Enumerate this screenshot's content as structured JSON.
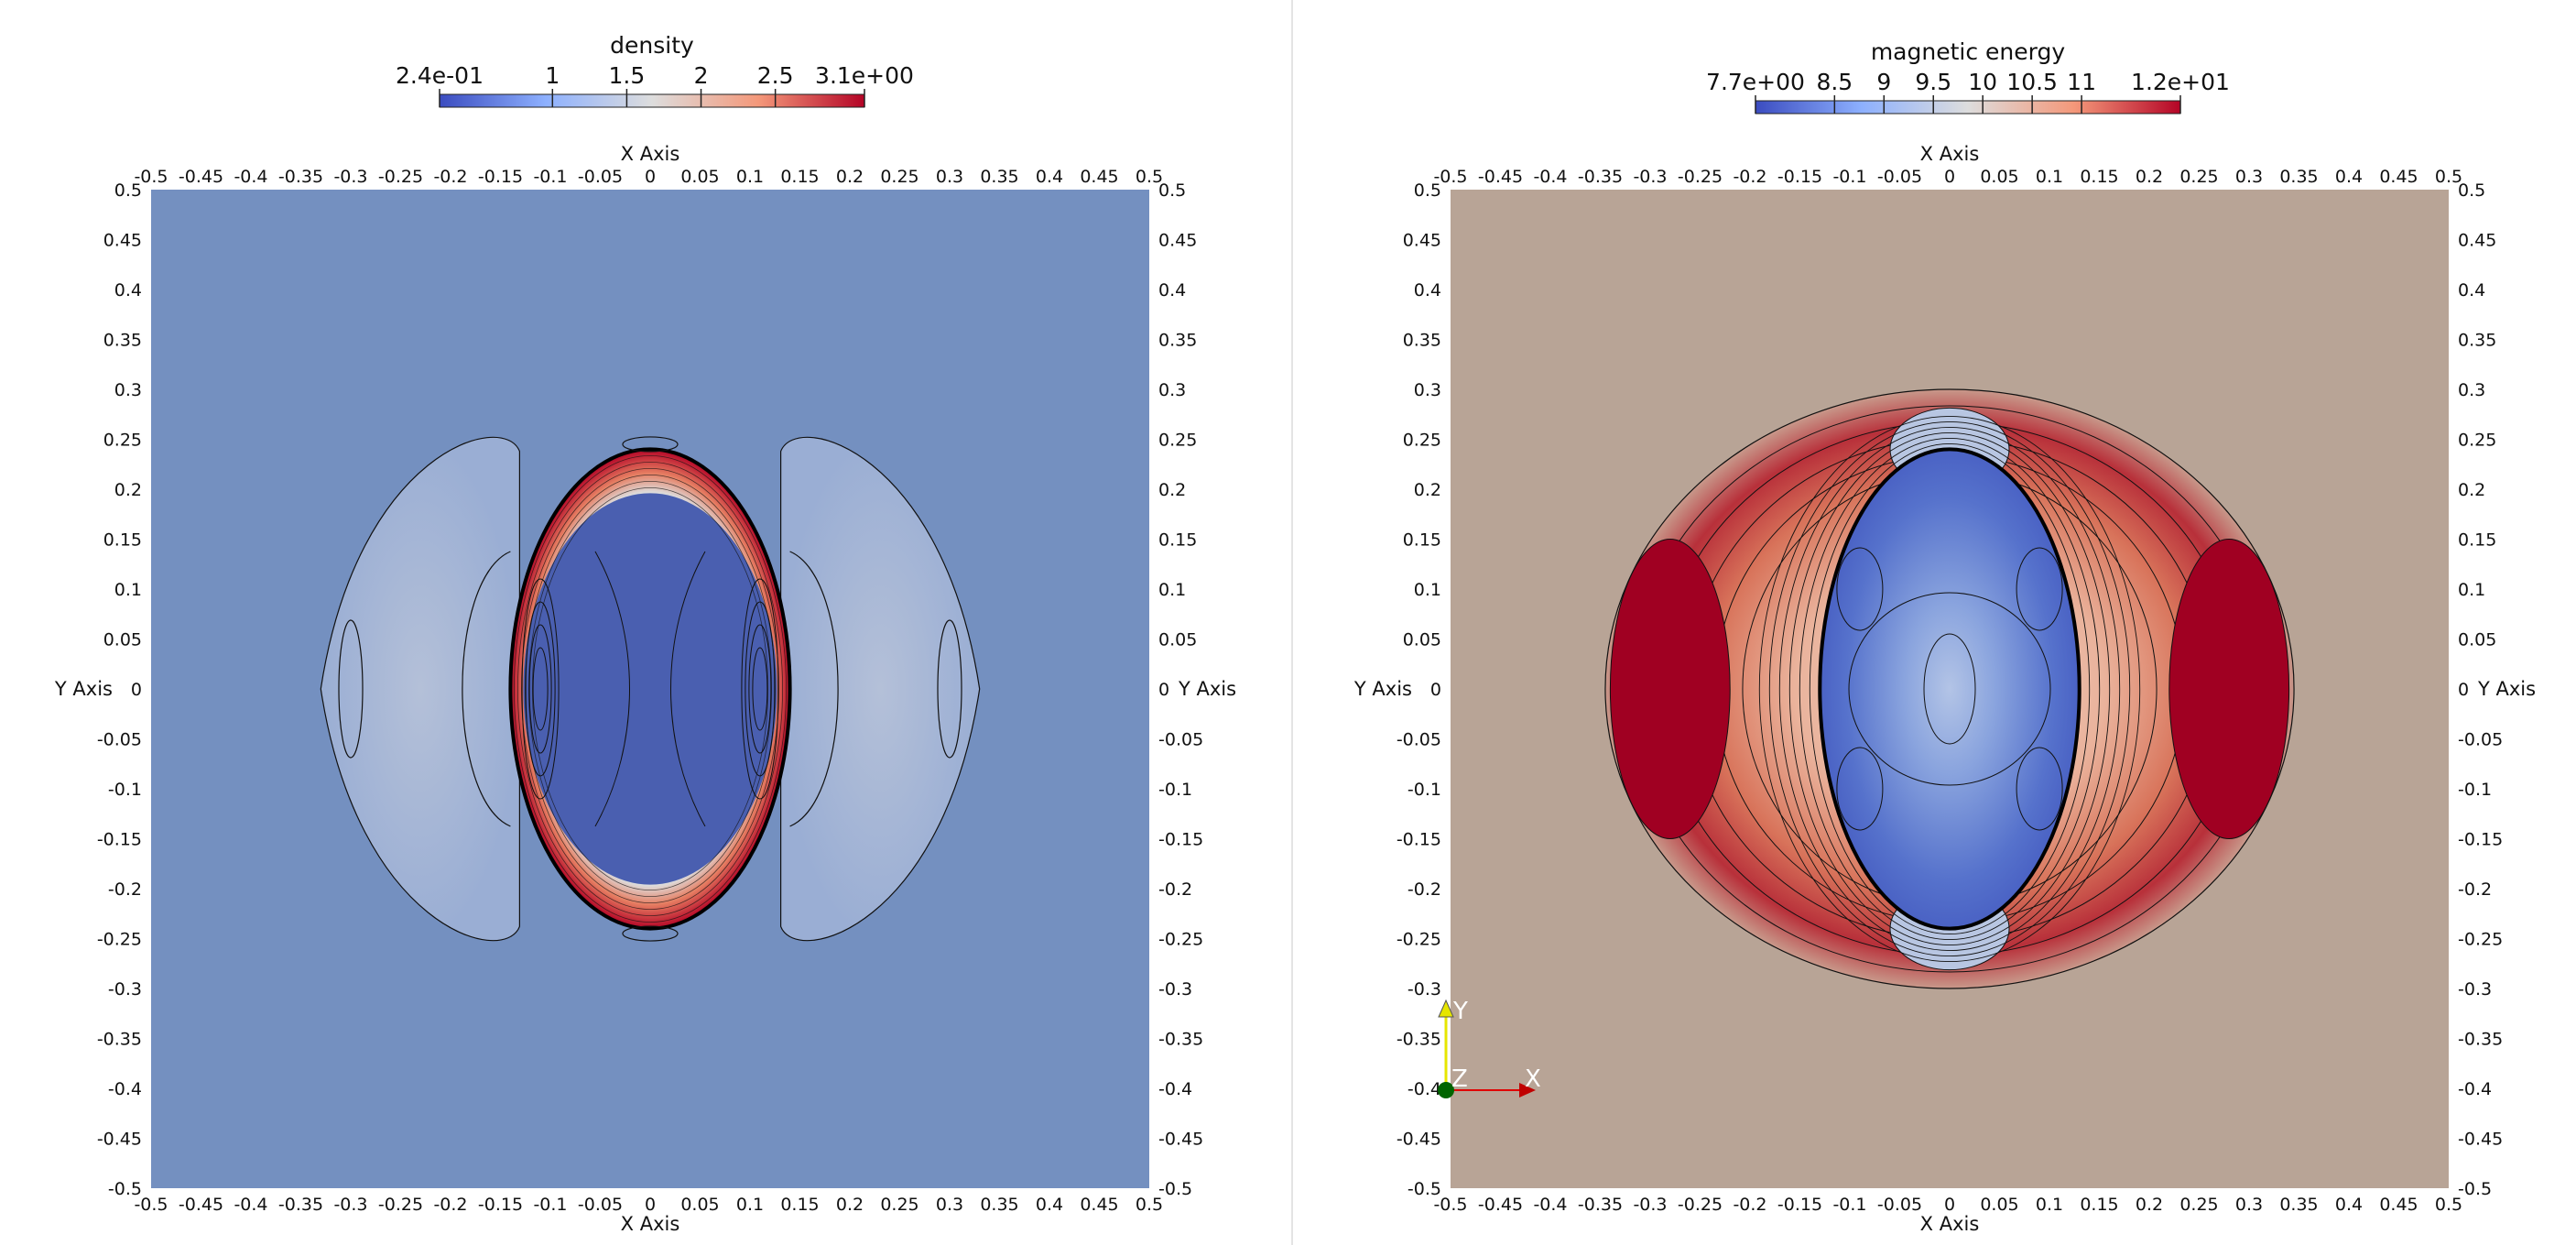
{
  "chart_data": [
    {
      "type": "heatmap",
      "title": "density",
      "colorbar": {
        "label": "density",
        "range": [
          0.24,
          3.1
        ],
        "ticks": [
          {
            "value": 0.24,
            "label": "2.4e-01"
          },
          {
            "value": 1.0,
            "label": "1"
          },
          {
            "value": 1.5,
            "label": "1.5"
          },
          {
            "value": 2.0,
            "label": "2"
          },
          {
            "value": 2.5,
            "label": "2.5"
          },
          {
            "value": 3.1,
            "label": "3.1e+00"
          }
        ],
        "colormap": [
          "#3b4cc0",
          "#8db0fe",
          "#dddddd",
          "#f4987a",
          "#b40426"
        ]
      },
      "xlabel": "X Axis",
      "ylabel": "Y Axis",
      "xlim": [
        -0.5,
        0.5
      ],
      "ylim": [
        -0.5,
        0.5
      ],
      "xticks": [
        "-0.5",
        "-0.45",
        "-0.4",
        "-0.35",
        "-0.3",
        "-0.25",
        "-0.2",
        "-0.15",
        "-0.1",
        "-0.05",
        "0",
        "0.05",
        "0.1",
        "0.15",
        "0.2",
        "0.25",
        "0.3",
        "0.35",
        "0.4",
        "0.45",
        "0.5"
      ],
      "yticks": [
        "0.5",
        "0.45",
        "0.4",
        "0.35",
        "0.3",
        "0.25",
        "0.2",
        "0.15",
        "0.1",
        "0.05",
        "0",
        "-0.05",
        "-0.1",
        "-0.15",
        "-0.2",
        "-0.25",
        "-0.3",
        "-0.35",
        "-0.4",
        "-0.45",
        "-0.5"
      ],
      "background_color": "#7490c0",
      "features": [
        {
          "kind": "cavity",
          "center": [
            0.0,
            0.0
          ],
          "semi_axes": [
            0.14,
            0.24
          ],
          "color": "#4a5fb0"
        },
        {
          "kind": "dense-shell",
          "center": [
            0.0,
            0.0
          ],
          "semi_axes": [
            0.14,
            0.24
          ],
          "color": "#b40426"
        },
        {
          "kind": "outer-wave",
          "extent_x": [
            -0.33,
            0.33
          ],
          "extent_y": [
            -0.27,
            0.27
          ],
          "color": "#aebcd8"
        }
      ],
      "contour_color": "#111111"
    },
    {
      "type": "heatmap",
      "title": "magnetic energy",
      "colorbar": {
        "label": "magnetic energy",
        "range": [
          7.7,
          12.0
        ],
        "ticks": [
          {
            "value": 7.7,
            "label": "7.7e+00"
          },
          {
            "value": 8.5,
            "label": "8.5"
          },
          {
            "value": 9.0,
            "label": "9"
          },
          {
            "value": 9.5,
            "label": "9.5"
          },
          {
            "value": 10.0,
            "label": "10"
          },
          {
            "value": 10.5,
            "label": "10.5"
          },
          {
            "value": 11.0,
            "label": "11"
          },
          {
            "value": 12.0,
            "label": "1.2e+01"
          }
        ],
        "colormap": [
          "#3b4cc0",
          "#8db0fe",
          "#dddddd",
          "#f4987a",
          "#b40426"
        ]
      },
      "xlabel": "X Axis",
      "ylabel": "Y Axis",
      "xlim": [
        -0.5,
        0.5
      ],
      "ylim": [
        -0.5,
        0.5
      ],
      "xticks": [
        "-0.5",
        "-0.45",
        "-0.4",
        "-0.35",
        "-0.3",
        "-0.25",
        "-0.2",
        "-0.15",
        "-0.1",
        "-0.05",
        "0",
        "0.05",
        "0.1",
        "0.15",
        "0.2",
        "0.25",
        "0.3",
        "0.35",
        "0.4",
        "0.45",
        "0.5"
      ],
      "yticks": [
        "0.5",
        "0.45",
        "0.4",
        "0.35",
        "0.3",
        "0.25",
        "0.2",
        "0.15",
        "0.1",
        "0.05",
        "0",
        "-0.05",
        "-0.1",
        "-0.15",
        "-0.2",
        "-0.25",
        "-0.3",
        "-0.35",
        "-0.4",
        "-0.45",
        "-0.5"
      ],
      "background_color": "#b8a496",
      "features": [
        {
          "kind": "cavity",
          "center": [
            0.0,
            0.0
          ],
          "semi_axes": [
            0.13,
            0.24
          ],
          "color": "#4a62c4"
        },
        {
          "kind": "lobe",
          "center": [
            -0.28,
            0.0
          ],
          "semi_axes": [
            0.06,
            0.15
          ],
          "color": "#a00022"
        },
        {
          "kind": "lobe",
          "center": [
            0.28,
            0.0
          ],
          "semi_axes": [
            0.06,
            0.15
          ],
          "color": "#a00022"
        }
      ],
      "contour_color": "#111111"
    }
  ],
  "orientation_axes": {
    "x": "X",
    "y": "Y",
    "z": "Z",
    "x_color": "#e00000",
    "y_color": "#e6e600",
    "z_color": "#006400"
  }
}
